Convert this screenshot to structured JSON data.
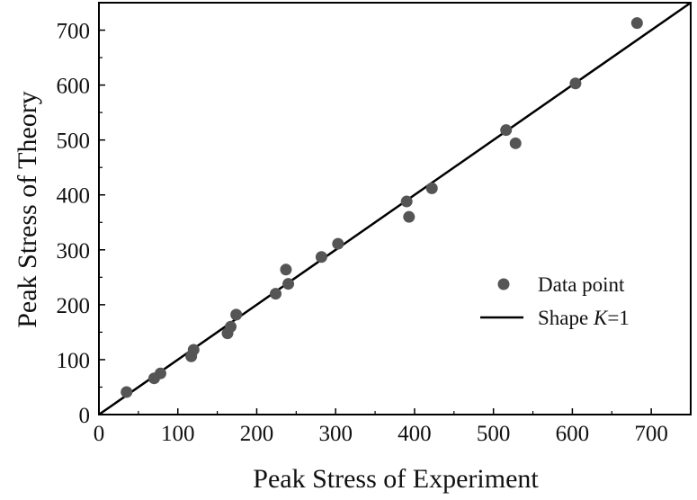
{
  "chart_data": {
    "type": "scatter",
    "xlabel": "Peak Stress of Experiment",
    "ylabel": "Peak Stress of Theory",
    "xlim": [
      0,
      750
    ],
    "ylim": [
      0,
      750
    ],
    "x_ticks": [
      "0",
      "100",
      "200",
      "300",
      "400",
      "500",
      "600",
      "700"
    ],
    "y_ticks": [
      "0",
      "100",
      "200",
      "300",
      "400",
      "500",
      "600",
      "700"
    ],
    "grid": false,
    "legend_position": "right",
    "series": [
      {
        "name": "Data point",
        "kind": "scatter",
        "color": "#555555",
        "points": [
          [
            35,
            41
          ],
          [
            70,
            66
          ],
          [
            78,
            75
          ],
          [
            117,
            106
          ],
          [
            120,
            118
          ],
          [
            163,
            148
          ],
          [
            167,
            160
          ],
          [
            174,
            182
          ],
          [
            224,
            220
          ],
          [
            237,
            264
          ],
          [
            240,
            238
          ],
          [
            282,
            287
          ],
          [
            303,
            311
          ],
          [
            390,
            388
          ],
          [
            393,
            360
          ],
          [
            422,
            412
          ],
          [
            516,
            518
          ],
          [
            528,
            494
          ],
          [
            604,
            603
          ],
          [
            682,
            713
          ]
        ]
      },
      {
        "name": "Shape K=1",
        "legend_prefix": "Shape ",
        "legend_italic": "K",
        "legend_suffix": "=1",
        "kind": "line",
        "color": "#000000",
        "points": [
          [
            0,
            0
          ],
          [
            750,
            750
          ]
        ]
      }
    ]
  }
}
